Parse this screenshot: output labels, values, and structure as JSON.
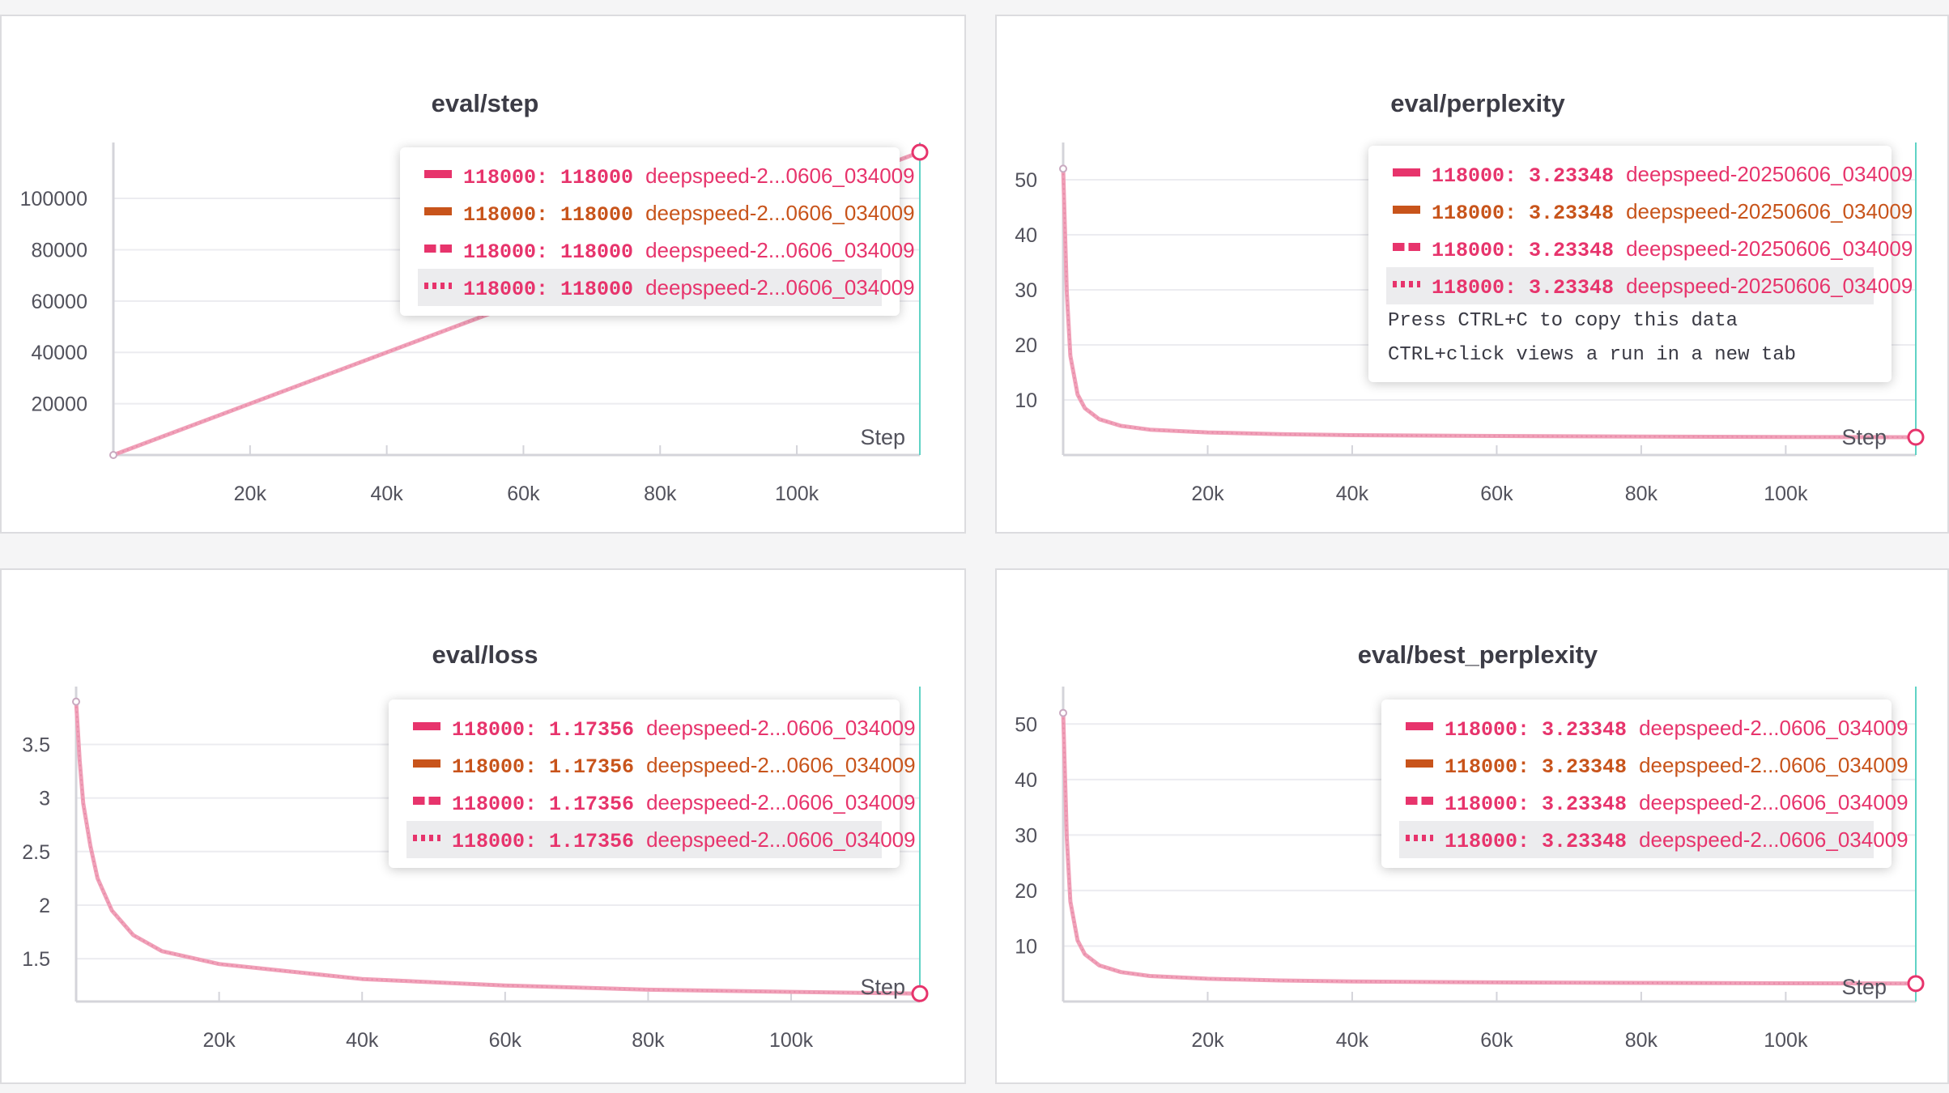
{
  "colors": {
    "pink": "#e7346c",
    "orange": "#c8541b",
    "line": "#f0a0b8",
    "cursor": "#5fd3c5"
  },
  "series_styles": [
    "solid",
    "solid-orange",
    "dashed",
    "dotted"
  ],
  "hint": {
    "line1": "Press CTRL+C to copy this data",
    "line2": "CTRL+click views a run in a new tab"
  },
  "step_label": "Step",
  "chart_data": [
    {
      "type": "line",
      "title": "eval/step",
      "xlabel": "Step",
      "ylabel": "",
      "xlim": [
        0,
        118000
      ],
      "ylim": [
        0,
        118000
      ],
      "grid": true,
      "xticks": [
        {
          "v": 20000,
          "label": "20k"
        },
        {
          "v": 40000,
          "label": "40k"
        },
        {
          "v": 60000,
          "label": "60k"
        },
        {
          "v": 80000,
          "label": "80k"
        },
        {
          "v": 100000,
          "label": "100k"
        }
      ],
      "yticks": [
        {
          "v": 20000,
          "label": "20000"
        },
        {
          "v": 40000,
          "label": "40000"
        },
        {
          "v": 60000,
          "label": "60000"
        },
        {
          "v": 80000,
          "label": "80000"
        },
        {
          "v": 100000,
          "label": "100000"
        }
      ],
      "x": [
        0,
        118000
      ],
      "y": [
        0,
        118000
      ],
      "tooltip_rows": [
        {
          "step": "118000",
          "value": "118000",
          "run": "deepspeed-2...0606_034009"
        },
        {
          "step": "118000",
          "value": "118000",
          "run": "deepspeed-2...0606_034009"
        },
        {
          "step": "118000",
          "value": "118000",
          "run": "deepspeed-2...0606_034009"
        },
        {
          "step": "118000",
          "value": "118000",
          "run": "deepspeed-2...0606_034009"
        }
      ]
    },
    {
      "type": "line",
      "title": "eval/perplexity",
      "xlabel": "Step",
      "ylabel": "",
      "xlim": [
        0,
        118000
      ],
      "ylim": [
        0,
        55
      ],
      "grid": true,
      "xticks": [
        {
          "v": 20000,
          "label": "20k"
        },
        {
          "v": 40000,
          "label": "40k"
        },
        {
          "v": 60000,
          "label": "60k"
        },
        {
          "v": 80000,
          "label": "80k"
        },
        {
          "v": 100000,
          "label": "100k"
        }
      ],
      "yticks": [
        {
          "v": 10,
          "label": "10"
        },
        {
          "v": 20,
          "label": "20"
        },
        {
          "v": 30,
          "label": "30"
        },
        {
          "v": 40,
          "label": "40"
        },
        {
          "v": 50,
          "label": "50"
        }
      ],
      "x": [
        0,
        500,
        1000,
        2000,
        3000,
        5000,
        8000,
        12000,
        20000,
        30000,
        40000,
        60000,
        80000,
        100000,
        118000
      ],
      "y": [
        52,
        29.5,
        18,
        11,
        8.5,
        6.5,
        5.3,
        4.6,
        4.1,
        3.8,
        3.6,
        3.45,
        3.35,
        3.28,
        3.23348
      ],
      "tooltip_rows": [
        {
          "step": "118000",
          "value": "3.23348",
          "run": "deepspeed-20250606_034009"
        },
        {
          "step": "118000",
          "value": "3.23348",
          "run": "deepspeed-20250606_034009"
        },
        {
          "step": "118000",
          "value": "3.23348",
          "run": "deepspeed-20250606_034009"
        },
        {
          "step": "118000",
          "value": "3.23348",
          "run": "deepspeed-20250606_034009"
        }
      ]
    },
    {
      "type": "line",
      "title": "eval/loss",
      "xlabel": "Step",
      "ylabel": "",
      "xlim": [
        0,
        118000
      ],
      "ylim": [
        1.1,
        3.95
      ],
      "grid": true,
      "xticks": [
        {
          "v": 20000,
          "label": "20k"
        },
        {
          "v": 40000,
          "label": "40k"
        },
        {
          "v": 60000,
          "label": "60k"
        },
        {
          "v": 80000,
          "label": "80k"
        },
        {
          "v": 100000,
          "label": "100k"
        }
      ],
      "yticks": [
        {
          "v": 1.5,
          "label": "1.5"
        },
        {
          "v": 2,
          "label": "2"
        },
        {
          "v": 2.5,
          "label": "2.5"
        },
        {
          "v": 3,
          "label": "3"
        },
        {
          "v": 3.5,
          "label": "3.5"
        }
      ],
      "x": [
        0,
        500,
        1000,
        2000,
        3000,
        5000,
        8000,
        12000,
        20000,
        30000,
        40000,
        60000,
        80000,
        100000,
        118000
      ],
      "y": [
        3.9,
        3.35,
        2.95,
        2.55,
        2.25,
        1.95,
        1.72,
        1.57,
        1.45,
        1.38,
        1.31,
        1.25,
        1.21,
        1.19,
        1.17356
      ],
      "tooltip_rows": [
        {
          "step": "118000",
          "value": "1.17356",
          "run": "deepspeed-2...0606_034009"
        },
        {
          "step": "118000",
          "value": "1.17356",
          "run": "deepspeed-2...0606_034009"
        },
        {
          "step": "118000",
          "value": "1.17356",
          "run": "deepspeed-2...0606_034009"
        },
        {
          "step": "118000",
          "value": "1.17356",
          "run": "deepspeed-2...0606_034009"
        }
      ]
    },
    {
      "type": "line",
      "title": "eval/best_perplexity",
      "xlabel": "Step",
      "ylabel": "",
      "xlim": [
        0,
        118000
      ],
      "ylim": [
        0,
        55
      ],
      "grid": true,
      "xticks": [
        {
          "v": 20000,
          "label": "20k"
        },
        {
          "v": 40000,
          "label": "40k"
        },
        {
          "v": 60000,
          "label": "60k"
        },
        {
          "v": 80000,
          "label": "80k"
        },
        {
          "v": 100000,
          "label": "100k"
        }
      ],
      "yticks": [
        {
          "v": 10,
          "label": "10"
        },
        {
          "v": 20,
          "label": "20"
        },
        {
          "v": 30,
          "label": "30"
        },
        {
          "v": 40,
          "label": "40"
        },
        {
          "v": 50,
          "label": "50"
        }
      ],
      "x": [
        0,
        500,
        1000,
        2000,
        3000,
        5000,
        8000,
        12000,
        20000,
        30000,
        40000,
        60000,
        80000,
        100000,
        118000
      ],
      "y": [
        52,
        29.5,
        18,
        11,
        8.5,
        6.5,
        5.3,
        4.6,
        4.1,
        3.8,
        3.6,
        3.45,
        3.35,
        3.28,
        3.23348
      ],
      "tooltip_rows": [
        {
          "step": "118000",
          "value": "3.23348",
          "run": "deepspeed-2...0606_034009"
        },
        {
          "step": "118000",
          "value": "3.23348",
          "run": "deepspeed-2...0606_034009"
        },
        {
          "step": "118000",
          "value": "3.23348",
          "run": "deepspeed-2...0606_034009"
        },
        {
          "step": "118000",
          "value": "3.23348",
          "run": "deepspeed-2...0606_034009"
        }
      ]
    }
  ]
}
